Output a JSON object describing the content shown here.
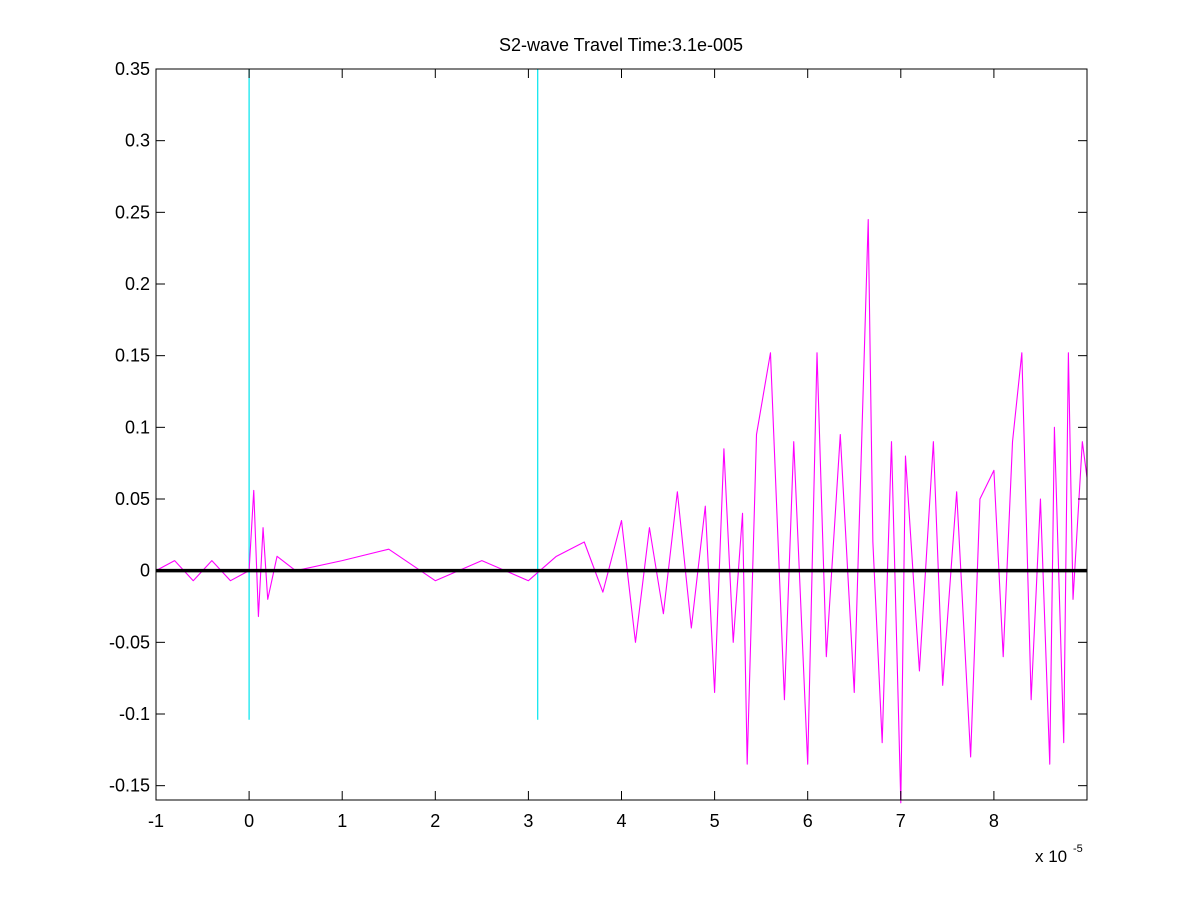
{
  "figure": {
    "background": "#ffffff",
    "title": "S2-wave Travel Time:3.1e-005",
    "x_exponent_base": "x 10",
    "x_exponent_power": "-5"
  },
  "chart_data": {
    "type": "line",
    "title": "S2-wave Travel Time:3.1e-005",
    "xlabel": "",
    "ylabel": "",
    "xlim": [
      -1,
      9
    ],
    "ylim": [
      -0.16,
      0.35
    ],
    "x_scale_note": "x 10^-5",
    "x_ticks": [
      -1,
      0,
      1,
      2,
      3,
      4,
      5,
      6,
      7,
      8
    ],
    "x_tick_labels": [
      "-1",
      "0",
      "1",
      "2",
      "3",
      "4",
      "5",
      "6",
      "7",
      "8"
    ],
    "y_ticks": [
      0.35,
      0.3,
      0.25,
      0.2,
      0.15,
      0.1,
      0.05,
      0,
      -0.05,
      -0.1,
      -0.15
    ],
    "y_tick_labels": [
      "0.35",
      "0.3",
      "0.25",
      "0.2",
      "0.15",
      "0.1",
      "0.05",
      "0",
      "-0.05",
      "-0.1",
      "-0.15"
    ],
    "grid": false,
    "legend": "none",
    "series": [
      {
        "color": "#ff00ff",
        "x": [
          -1.0,
          -0.8,
          -0.6,
          -0.4,
          -0.2,
          0.0,
          0.05,
          0.1,
          0.15,
          0.2,
          0.3,
          0.5,
          1.0,
          1.5,
          2.0,
          2.5,
          3.0,
          3.3,
          3.6,
          3.8,
          4.0,
          4.15,
          4.3,
          4.45,
          4.6,
          4.75,
          4.9,
          5.0,
          5.1,
          5.2,
          5.3,
          5.35,
          5.45,
          5.6,
          5.75,
          5.85,
          6.0,
          6.1,
          6.2,
          6.35,
          6.5,
          6.65,
          6.7,
          6.8,
          6.9,
          7.0,
          7.05,
          7.2,
          7.35,
          7.45,
          7.6,
          7.75,
          7.85,
          8.0,
          8.1,
          8.2,
          8.3,
          8.4,
          8.5,
          8.6,
          8.65,
          8.75,
          8.8,
          8.85,
          8.95,
          9.0
        ],
        "y": [
          0.0,
          0.007,
          -0.007,
          0.007,
          -0.007,
          0.0,
          0.056,
          -0.032,
          0.03,
          -0.02,
          0.01,
          0.0,
          0.007,
          0.015,
          -0.007,
          0.007,
          -0.007,
          0.01,
          0.02,
          -0.015,
          0.035,
          -0.05,
          0.03,
          -0.03,
          0.055,
          -0.04,
          0.045,
          -0.085,
          0.085,
          -0.05,
          0.04,
          -0.135,
          0.095,
          0.152,
          -0.09,
          0.09,
          -0.135,
          0.152,
          -0.06,
          0.095,
          -0.085,
          0.245,
          0.02,
          -0.12,
          0.09,
          -0.162,
          0.08,
          -0.07,
          0.09,
          -0.08,
          0.055,
          -0.13,
          0.05,
          0.07,
          -0.06,
          0.09,
          0.152,
          -0.09,
          0.05,
          -0.135,
          0.1,
          -0.12,
          0.152,
          -0.02,
          0.09,
          0.065
        ]
      },
      {
        "color": "#000000",
        "x": [
          -1,
          9
        ],
        "y": [
          0,
          0
        ]
      }
    ],
    "vertical_markers": [
      {
        "x": 0.0,
        "y_top": 0.35,
        "y_bottom": -0.104,
        "color": "#00e5ee"
      },
      {
        "x": 3.1,
        "y_top": 0.35,
        "y_bottom": -0.104,
        "color": "#00e5ee"
      }
    ]
  }
}
